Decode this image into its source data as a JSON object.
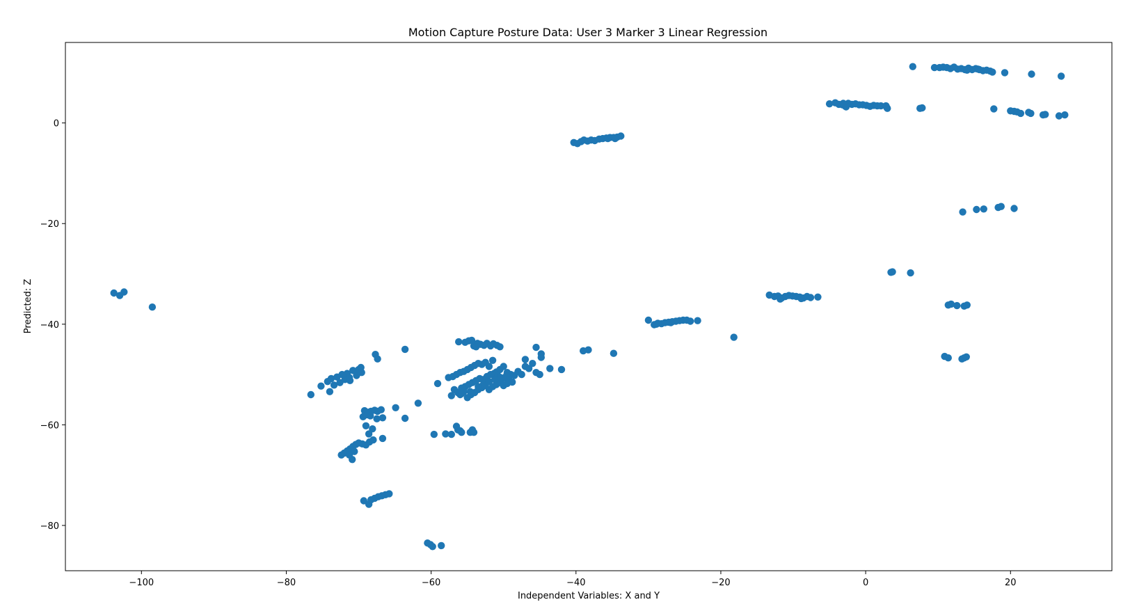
{
  "chart_data": {
    "type": "scatter",
    "title": "Motion Capture Posture Data: User 3 Marker 3 Linear Regression",
    "xlabel": "Independent Variables: X and Y",
    "ylabel": "Predicted: Z",
    "xlim": [
      -110.5,
      34
    ],
    "ylim": [
      -89,
      16
    ],
    "xticks": [
      -100,
      -80,
      -60,
      -40,
      -20,
      0,
      20
    ],
    "yticks": [
      -80,
      -60,
      -40,
      -20,
      0
    ],
    "xtick_labels": [
      "−100",
      "−80",
      "−60",
      "−40",
      "−20",
      "0",
      "20"
    ],
    "ytick_labels": [
      "−80",
      "−60",
      "−40",
      "−20",
      "0"
    ],
    "grid": false,
    "color": "#1f77b4",
    "points": [
      [
        -103.8,
        -33.8
      ],
      [
        -103.0,
        -34.3
      ],
      [
        -102.4,
        -33.6
      ],
      [
        -98.5,
        -36.6
      ],
      [
        -76.6,
        -54.0
      ],
      [
        -75.2,
        -52.3
      ],
      [
        -74.0,
        -53.4
      ],
      [
        -74.3,
        -51.4
      ],
      [
        -73.8,
        -50.8
      ],
      [
        -73.4,
        -52.1
      ],
      [
        -73.0,
        -50.5
      ],
      [
        -72.6,
        -51.6
      ],
      [
        -72.3,
        -50.0
      ],
      [
        -71.9,
        -51.0
      ],
      [
        -71.6,
        -49.8
      ],
      [
        -71.3,
        -50.6
      ],
      [
        -71.2,
        -51.2
      ],
      [
        -70.8,
        -49.2
      ],
      [
        -70.3,
        -50.2
      ],
      [
        -70.0,
        -49.0
      ],
      [
        -69.7,
        -48.6
      ],
      [
        -69.6,
        -49.6
      ],
      [
        -69.2,
        -57.2
      ],
      [
        -68.7,
        -57.5
      ],
      [
        -68.3,
        -57.3
      ],
      [
        -67.8,
        -57.1
      ],
      [
        -67.4,
        -57.3
      ],
      [
        -66.9,
        -57.0
      ],
      [
        -69.4,
        -58.4
      ],
      [
        -68.9,
        -58.0
      ],
      [
        -68.4,
        -58.2
      ],
      [
        -69.0,
        -60.2
      ],
      [
        -68.6,
        -61.8
      ],
      [
        -68.1,
        -60.8
      ],
      [
        -67.5,
        -58.8
      ],
      [
        -66.7,
        -58.6
      ],
      [
        -66.7,
        -62.7
      ],
      [
        -67.7,
        -46.0
      ],
      [
        -67.4,
        -46.9
      ],
      [
        -72.4,
        -66.0
      ],
      [
        -72.0,
        -65.6
      ],
      [
        -71.6,
        -65.2
      ],
      [
        -71.2,
        -64.8
      ],
      [
        -70.8,
        -64.3
      ],
      [
        -70.4,
        -63.9
      ],
      [
        -70.0,
        -63.6
      ],
      [
        -69.5,
        -63.8
      ],
      [
        -69.0,
        -64.0
      ],
      [
        -68.5,
        -63.4
      ],
      [
        -68.0,
        -63.0
      ],
      [
        -70.6,
        -65.3
      ],
      [
        -70.9,
        -66.9
      ],
      [
        -71.3,
        -66.0
      ],
      [
        -69.3,
        -75.1
      ],
      [
        -68.6,
        -75.8
      ],
      [
        -68.3,
        -74.9
      ],
      [
        -67.8,
        -74.6
      ],
      [
        -67.3,
        -74.3
      ],
      [
        -66.8,
        -74.1
      ],
      [
        -66.3,
        -73.9
      ],
      [
        -65.8,
        -73.7
      ],
      [
        -64.9,
        -56.6
      ],
      [
        -63.6,
        -58.7
      ],
      [
        -63.6,
        -45.0
      ],
      [
        -61.8,
        -55.7
      ],
      [
        -60.5,
        -83.5
      ],
      [
        -60.1,
        -83.8
      ],
      [
        -59.8,
        -84.2
      ],
      [
        -58.6,
        -84.0
      ],
      [
        -59.6,
        -61.9
      ],
      [
        -59.1,
        -51.8
      ],
      [
        -58.0,
        -61.8
      ],
      [
        -57.2,
        -61.9
      ],
      [
        -56.5,
        -60.3
      ],
      [
        -56.3,
        -61.0
      ],
      [
        -56.0,
        -61.2
      ],
      [
        -55.8,
        -61.5
      ],
      [
        -54.6,
        -61.5
      ],
      [
        -54.3,
        -61.0
      ],
      [
        -54.1,
        -61.5
      ],
      [
        -57.6,
        -50.6
      ],
      [
        -57.0,
        -50.4
      ],
      [
        -56.5,
        -50.0
      ],
      [
        -56.0,
        -49.6
      ],
      [
        -55.5,
        -49.4
      ],
      [
        -55.0,
        -49.0
      ],
      [
        -54.5,
        -48.6
      ],
      [
        -54.0,
        -48.2
      ],
      [
        -53.5,
        -47.8
      ],
      [
        -53.0,
        -48.0
      ],
      [
        -52.5,
        -47.6
      ],
      [
        -52.0,
        -48.4
      ],
      [
        -51.5,
        -47.2
      ],
      [
        -51.0,
        -49.5
      ],
      [
        -50.5,
        -49.0
      ],
      [
        -50.0,
        -48.4
      ],
      [
        -49.5,
        -49.6
      ],
      [
        -49.0,
        -50.0
      ],
      [
        -48.5,
        -50.2
      ],
      [
        -48.0,
        -49.4
      ],
      [
        -47.5,
        -50.0
      ],
      [
        -47.0,
        -48.4
      ],
      [
        -46.5,
        -48.8
      ],
      [
        -46.0,
        -47.8
      ],
      [
        -45.5,
        -49.6
      ],
      [
        -45.0,
        -50.0
      ],
      [
        -57.2,
        -54.2
      ],
      [
        -56.8,
        -53.0
      ],
      [
        -56.3,
        -53.6
      ],
      [
        -55.8,
        -52.7
      ],
      [
        -55.3,
        -52.4
      ],
      [
        -54.8,
        -52.0
      ],
      [
        -54.3,
        -51.6
      ],
      [
        -53.8,
        -51.2
      ],
      [
        -53.3,
        -50.8
      ],
      [
        -52.8,
        -51.0
      ],
      [
        -52.3,
        -50.4
      ],
      [
        -51.8,
        -50.0
      ],
      [
        -51.3,
        -49.8
      ],
      [
        -50.8,
        -50.2
      ],
      [
        -50.3,
        -51.0
      ],
      [
        -49.8,
        -50.6
      ],
      [
        -49.3,
        -50.8
      ],
      [
        -48.8,
        -51.5
      ],
      [
        -56.0,
        -54.0
      ],
      [
        -55.5,
        -53.4
      ],
      [
        -55.0,
        -54.6
      ],
      [
        -54.5,
        -54.0
      ],
      [
        -54.0,
        -53.6
      ],
      [
        -53.5,
        -53.0
      ],
      [
        -53.0,
        -52.6
      ],
      [
        -52.5,
        -52.2
      ],
      [
        -52.0,
        -53.0
      ],
      [
        -51.5,
        -52.4
      ],
      [
        -51.0,
        -52.0
      ],
      [
        -50.5,
        -51.6
      ],
      [
        -50.0,
        -52.2
      ],
      [
        -49.5,
        -51.8
      ],
      [
        -52.8,
        -52.0
      ],
      [
        -52.0,
        -51.4
      ],
      [
        -51.2,
        -51.0
      ],
      [
        -50.4,
        -50.6
      ],
      [
        -49.6,
        -50.2
      ],
      [
        -53.5,
        -52.4
      ],
      [
        -54.6,
        -53.4
      ],
      [
        -55.8,
        -53.8
      ],
      [
        -56.2,
        -43.5
      ],
      [
        -55.3,
        -43.6
      ],
      [
        -54.8,
        -43.3
      ],
      [
        -54.4,
        -43.2
      ],
      [
        -54.1,
        -44.3
      ],
      [
        -53.6,
        -43.8
      ],
      [
        -53.2,
        -44.0
      ],
      [
        -52.7,
        -44.2
      ],
      [
        -52.3,
        -43.8
      ],
      [
        -51.8,
        -44.3
      ],
      [
        -51.4,
        -43.9
      ],
      [
        -50.9,
        -44.2
      ],
      [
        -50.5,
        -44.5
      ],
      [
        -53.8,
        -44.5
      ],
      [
        -47.0,
        -47.0
      ],
      [
        -45.5,
        -44.6
      ],
      [
        -44.8,
        -46.6
      ],
      [
        -44.8,
        -45.9
      ],
      [
        -43.6,
        -48.8
      ],
      [
        -42.0,
        -49.0
      ],
      [
        -40.3,
        -3.9
      ],
      [
        -39.8,
        -4.1
      ],
      [
        -39.3,
        -3.7
      ],
      [
        -38.9,
        -3.4
      ],
      [
        -38.4,
        -3.6
      ],
      [
        -37.9,
        -3.4
      ],
      [
        -37.4,
        -3.5
      ],
      [
        -36.8,
        -3.2
      ],
      [
        -36.3,
        -3.1
      ],
      [
        -35.8,
        -3.0
      ],
      [
        -35.3,
        -2.9
      ],
      [
        -34.8,
        -2.9
      ],
      [
        -34.3,
        -2.8
      ],
      [
        -33.8,
        -2.6
      ],
      [
        -34.6,
        -3.1
      ],
      [
        -35.6,
        -3.1
      ],
      [
        -39.0,
        -45.3
      ],
      [
        -38.3,
        -45.1
      ],
      [
        -34.8,
        -45.8
      ],
      [
        -30.0,
        -39.2
      ],
      [
        -29.2,
        -40.1
      ],
      [
        -28.7,
        -39.8
      ],
      [
        -28.2,
        -39.9
      ],
      [
        -27.7,
        -39.7
      ],
      [
        -27.2,
        -39.6
      ],
      [
        -26.7,
        -39.5
      ],
      [
        -26.2,
        -39.4
      ],
      [
        -25.7,
        -39.3
      ],
      [
        -25.2,
        -39.2
      ],
      [
        -24.7,
        -39.2
      ],
      [
        -24.2,
        -39.4
      ],
      [
        -23.2,
        -39.3
      ],
      [
        -28.9,
        -40.0
      ],
      [
        -26.9,
        -39.7
      ],
      [
        -18.2,
        -42.6
      ],
      [
        -13.3,
        -34.2
      ],
      [
        -12.6,
        -34.5
      ],
      [
        -12.1,
        -34.4
      ],
      [
        -11.6,
        -34.8
      ],
      [
        -11.1,
        -34.5
      ],
      [
        -10.6,
        -34.3
      ],
      [
        -10.1,
        -34.4
      ],
      [
        -9.6,
        -34.5
      ],
      [
        -9.1,
        -34.6
      ],
      [
        -8.6,
        -34.8
      ],
      [
        -8.1,
        -34.5
      ],
      [
        -7.6,
        -34.7
      ],
      [
        -6.6,
        -34.6
      ],
      [
        -11.8,
        -35.0
      ],
      [
        -8.9,
        -34.9
      ],
      [
        -5.0,
        3.8
      ],
      [
        -4.2,
        4.0
      ],
      [
        -3.7,
        3.7
      ],
      [
        -3.2,
        3.6
      ],
      [
        -2.8,
        3.3
      ],
      [
        -2.4,
        3.9
      ],
      [
        -1.9,
        3.7
      ],
      [
        -1.4,
        3.8
      ],
      [
        -0.9,
        3.6
      ],
      [
        -0.4,
        3.6
      ],
      [
        0.1,
        3.5
      ],
      [
        0.6,
        3.3
      ],
      [
        1.1,
        3.5
      ],
      [
        1.6,
        3.4
      ],
      [
        2.1,
        3.4
      ],
      [
        2.8,
        3.4
      ],
      [
        3.0,
        2.9
      ],
      [
        2.9,
        3.1
      ],
      [
        -2.7,
        3.2
      ],
      [
        -3.1,
        3.9
      ],
      [
        7.5,
        2.9
      ],
      [
        7.8,
        3.0
      ],
      [
        3.5,
        -29.7
      ],
      [
        3.7,
        -29.6
      ],
      [
        6.2,
        -29.8
      ],
      [
        6.5,
        11.2
      ],
      [
        9.5,
        11.0
      ],
      [
        10.2,
        11.0
      ],
      [
        10.7,
        11.1
      ],
      [
        11.2,
        11.0
      ],
      [
        11.7,
        10.8
      ],
      [
        12.2,
        11.1
      ],
      [
        12.7,
        10.7
      ],
      [
        13.2,
        10.8
      ],
      [
        13.7,
        10.6
      ],
      [
        14.2,
        10.9
      ],
      [
        14.7,
        10.6
      ],
      [
        15.2,
        10.8
      ],
      [
        15.7,
        10.6
      ],
      [
        16.2,
        10.4
      ],
      [
        16.7,
        10.5
      ],
      [
        17.2,
        10.3
      ],
      [
        17.5,
        10.1
      ],
      [
        19.2,
        10.0
      ],
      [
        22.9,
        9.7
      ],
      [
        27.0,
        9.3
      ],
      [
        14.0,
        10.5
      ],
      [
        15.5,
        10.7
      ],
      [
        17.7,
        2.8
      ],
      [
        20.0,
        2.4
      ],
      [
        20.5,
        2.3
      ],
      [
        20.9,
        2.2
      ],
      [
        21.4,
        1.9
      ],
      [
        22.5,
        2.1
      ],
      [
        22.8,
        1.9
      ],
      [
        24.5,
        1.6
      ],
      [
        24.8,
        1.7
      ],
      [
        26.7,
        1.4
      ],
      [
        27.5,
        1.6
      ],
      [
        13.4,
        -17.7
      ],
      [
        15.3,
        -17.2
      ],
      [
        16.3,
        -17.1
      ],
      [
        18.3,
        -16.8
      ],
      [
        18.7,
        -16.6
      ],
      [
        20.5,
        -17.0
      ],
      [
        11.4,
        -36.2
      ],
      [
        11.8,
        -36.0
      ],
      [
        12.6,
        -36.3
      ],
      [
        13.6,
        -36.4
      ],
      [
        14.0,
        -36.2
      ],
      [
        10.9,
        -46.4
      ],
      [
        11.4,
        -46.7
      ],
      [
        13.3,
        -46.9
      ],
      [
        13.6,
        -46.7
      ],
      [
        13.9,
        -46.5
      ]
    ]
  }
}
